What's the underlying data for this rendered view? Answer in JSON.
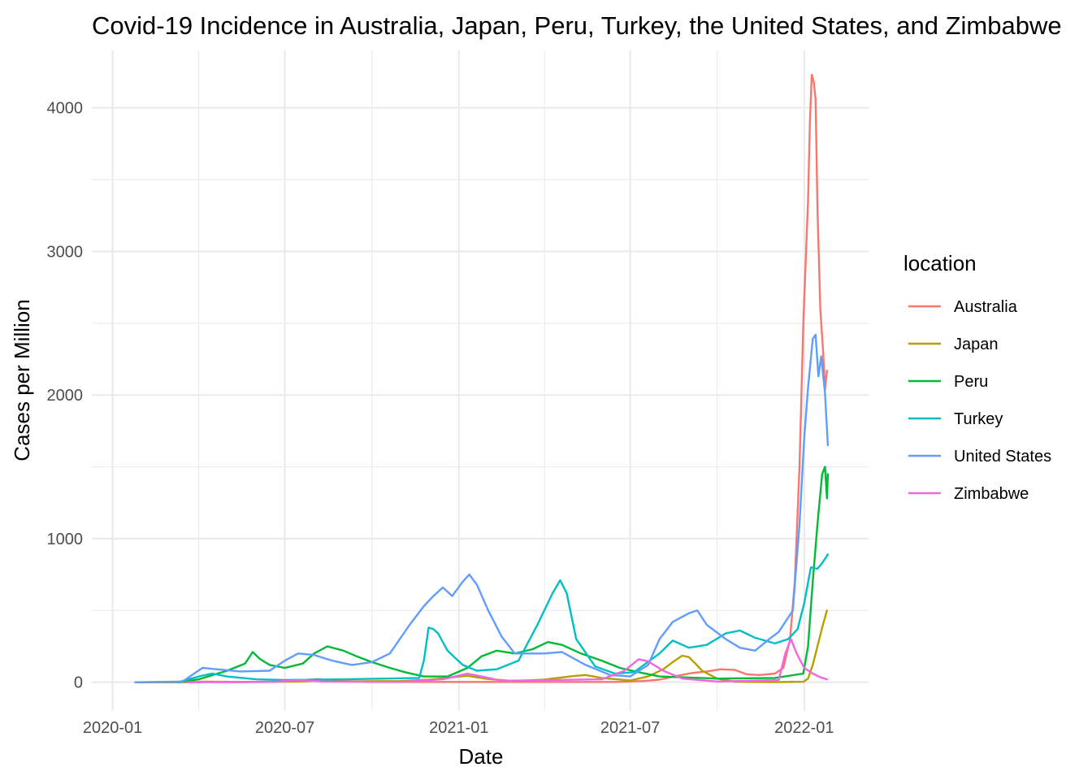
{
  "chart_data": {
    "type": "line",
    "title": "Covid-19 Incidence in Australia, Japan, Peru, Turkey, the United States, and Zimbabwe",
    "xlabel": "Date",
    "ylabel": "Cases per Million",
    "x_ticks": [
      "2020-01",
      "2020-07",
      "2021-01",
      "2021-07",
      "2022-01"
    ],
    "y_ticks": [
      0,
      1000,
      2000,
      3000,
      4000
    ],
    "xlim": [
      "2019-12-10",
      "2022-03-10"
    ],
    "ylim": [
      -200,
      4400
    ],
    "grid": true,
    "legend": {
      "title": "location",
      "position": "right"
    },
    "series": [
      {
        "name": "Australia",
        "color": "#F8766D",
        "points": [
          [
            "2020-01-25",
            0
          ],
          [
            "2020-03-20",
            1
          ],
          [
            "2020-04-05",
            4
          ],
          [
            "2020-05-01",
            1
          ],
          [
            "2020-07-01",
            5
          ],
          [
            "2020-07-20",
            15
          ],
          [
            "2020-08-05",
            22
          ],
          [
            "2020-08-25",
            10
          ],
          [
            "2020-10-01",
            2
          ],
          [
            "2021-06-15",
            2
          ],
          [
            "2021-07-15",
            8
          ],
          [
            "2021-08-01",
            18
          ],
          [
            "2021-08-20",
            45
          ],
          [
            "2021-09-05",
            65
          ],
          [
            "2021-09-20",
            75
          ],
          [
            "2021-10-05",
            90
          ],
          [
            "2021-10-20",
            85
          ],
          [
            "2021-11-01",
            55
          ],
          [
            "2021-11-15",
            50
          ],
          [
            "2021-12-01",
            60
          ],
          [
            "2021-12-10",
            100
          ],
          [
            "2021-12-17",
            300
          ],
          [
            "2021-12-22",
            700
          ],
          [
            "2021-12-27",
            1500
          ],
          [
            "2021-12-31",
            2500
          ],
          [
            "2022-01-03",
            3000
          ],
          [
            "2022-01-05",
            3350
          ],
          [
            "2022-01-07",
            3900
          ],
          [
            "2022-01-09",
            4230
          ],
          [
            "2022-01-11",
            4180
          ],
          [
            "2022-01-13",
            4060
          ],
          [
            "2022-01-15",
            3300
          ],
          [
            "2022-01-18",
            2600
          ],
          [
            "2022-01-21",
            2300
          ],
          [
            "2022-01-23",
            2040
          ],
          [
            "2022-01-25",
            2170
          ]
        ]
      },
      {
        "name": "Japan",
        "color": "#B79F00",
        "points": [
          [
            "2020-01-25",
            0
          ],
          [
            "2020-03-01",
            0
          ],
          [
            "2020-04-15",
            3
          ],
          [
            "2020-05-15",
            1
          ],
          [
            "2020-07-15",
            5
          ],
          [
            "2020-08-05",
            10
          ],
          [
            "2020-09-01",
            6
          ],
          [
            "2020-11-01",
            8
          ],
          [
            "2020-12-01",
            18
          ],
          [
            "2021-01-10",
            45
          ],
          [
            "2021-02-01",
            22
          ],
          [
            "2021-03-01",
            8
          ],
          [
            "2021-04-01",
            18
          ],
          [
            "2021-05-01",
            42
          ],
          [
            "2021-05-15",
            50
          ],
          [
            "2021-06-01",
            30
          ],
          [
            "2021-07-01",
            12
          ],
          [
            "2021-07-20",
            40
          ],
          [
            "2021-08-05",
            90
          ],
          [
            "2021-08-15",
            140
          ],
          [
            "2021-08-25",
            185
          ],
          [
            "2021-09-01",
            175
          ],
          [
            "2021-09-08",
            130
          ],
          [
            "2021-09-15",
            80
          ],
          [
            "2021-10-01",
            25
          ],
          [
            "2021-10-20",
            3
          ],
          [
            "2021-12-01",
            1
          ],
          [
            "2021-12-31",
            3
          ],
          [
            "2022-01-05",
            25
          ],
          [
            "2022-01-10",
            120
          ],
          [
            "2022-01-15",
            250
          ],
          [
            "2022-01-20",
            380
          ],
          [
            "2022-01-25",
            500
          ]
        ]
      },
      {
        "name": "Peru",
        "color": "#00BA38",
        "points": [
          [
            "2020-03-10",
            0
          ],
          [
            "2020-04-01",
            20
          ],
          [
            "2020-05-01",
            80
          ],
          [
            "2020-05-20",
            130
          ],
          [
            "2020-05-28",
            210
          ],
          [
            "2020-06-05",
            160
          ],
          [
            "2020-06-15",
            120
          ],
          [
            "2020-07-01",
            100
          ],
          [
            "2020-07-20",
            130
          ],
          [
            "2020-08-01",
            200
          ],
          [
            "2020-08-15",
            250
          ],
          [
            "2020-09-01",
            220
          ],
          [
            "2020-09-15",
            180
          ],
          [
            "2020-10-01",
            140
          ],
          [
            "2020-10-20",
            100
          ],
          [
            "2020-11-05",
            70
          ],
          [
            "2020-11-25",
            40
          ],
          [
            "2020-12-20",
            40
          ],
          [
            "2021-01-10",
            100
          ],
          [
            "2021-01-25",
            180
          ],
          [
            "2021-02-10",
            220
          ],
          [
            "2021-03-01",
            200
          ],
          [
            "2021-03-20",
            230
          ],
          [
            "2021-04-05",
            280
          ],
          [
            "2021-04-20",
            260
          ],
          [
            "2021-05-10",
            200
          ],
          [
            "2021-06-01",
            150
          ],
          [
            "2021-06-20",
            100
          ],
          [
            "2021-07-10",
            70
          ],
          [
            "2021-08-01",
            40
          ],
          [
            "2021-10-01",
            25
          ],
          [
            "2021-12-01",
            30
          ],
          [
            "2021-12-31",
            60
          ],
          [
            "2022-01-05",
            250
          ],
          [
            "2022-01-10",
            700
          ],
          [
            "2022-01-15",
            1100
          ],
          [
            "2022-01-20",
            1450
          ],
          [
            "2022-01-23",
            1500
          ],
          [
            "2022-01-25",
            1280
          ],
          [
            "2022-01-26",
            1450
          ]
        ]
      },
      {
        "name": "Turkey",
        "color": "#00BFC4",
        "points": [
          [
            "2020-03-10",
            0
          ],
          [
            "2020-04-01",
            40
          ],
          [
            "2020-04-15",
            60
          ],
          [
            "2020-05-01",
            40
          ],
          [
            "2020-06-01",
            20
          ],
          [
            "2020-07-01",
            15
          ],
          [
            "2020-09-01",
            20
          ],
          [
            "2020-11-20",
            30
          ],
          [
            "2020-11-25",
            150
          ],
          [
            "2020-11-30",
            380
          ],
          [
            "2020-12-05",
            370
          ],
          [
            "2020-12-10",
            340
          ],
          [
            "2020-12-20",
            220
          ],
          [
            "2021-01-05",
            120
          ],
          [
            "2021-01-20",
            80
          ],
          [
            "2021-02-10",
            90
          ],
          [
            "2021-03-05",
            150
          ],
          [
            "2021-03-25",
            400
          ],
          [
            "2021-04-10",
            620
          ],
          [
            "2021-04-18",
            710
          ],
          [
            "2021-04-25",
            620
          ],
          [
            "2021-05-05",
            300
          ],
          [
            "2021-05-25",
            110
          ],
          [
            "2021-06-15",
            60
          ],
          [
            "2021-07-05",
            70
          ],
          [
            "2021-08-01",
            200
          ],
          [
            "2021-08-15",
            290
          ],
          [
            "2021-09-01",
            240
          ],
          [
            "2021-09-20",
            260
          ],
          [
            "2021-10-10",
            340
          ],
          [
            "2021-10-25",
            360
          ],
          [
            "2021-11-10",
            310
          ],
          [
            "2021-12-01",
            270
          ],
          [
            "2021-12-15",
            300
          ],
          [
            "2021-12-25",
            370
          ],
          [
            "2022-01-01",
            550
          ],
          [
            "2022-01-08",
            800
          ],
          [
            "2022-01-15",
            790
          ],
          [
            "2022-01-20",
            830
          ],
          [
            "2022-01-26",
            890
          ]
        ]
      },
      {
        "name": "United States",
        "color": "#619CFF",
        "points": [
          [
            "2020-01-25",
            0
          ],
          [
            "2020-03-15",
            5
          ],
          [
            "2020-03-25",
            50
          ],
          [
            "2020-04-05",
            100
          ],
          [
            "2020-04-20",
            90
          ],
          [
            "2020-05-15",
            75
          ],
          [
            "2020-06-15",
            80
          ],
          [
            "2020-07-01",
            150
          ],
          [
            "2020-07-15",
            200
          ],
          [
            "2020-08-01",
            190
          ],
          [
            "2020-08-20",
            150
          ],
          [
            "2020-09-10",
            120
          ],
          [
            "2020-10-01",
            140
          ],
          [
            "2020-10-20",
            200
          ],
          [
            "2020-11-10",
            400
          ],
          [
            "2020-11-25",
            530
          ],
          [
            "2020-12-05",
            600
          ],
          [
            "2020-12-15",
            660
          ],
          [
            "2020-12-25",
            600
          ],
          [
            "2021-01-05",
            700
          ],
          [
            "2021-01-12",
            750
          ],
          [
            "2021-01-20",
            680
          ],
          [
            "2021-02-01",
            500
          ],
          [
            "2021-02-15",
            320
          ],
          [
            "2021-03-01",
            200
          ],
          [
            "2021-04-01",
            200
          ],
          [
            "2021-04-20",
            210
          ],
          [
            "2021-05-15",
            120
          ],
          [
            "2021-06-10",
            50
          ],
          [
            "2021-07-01",
            40
          ],
          [
            "2021-07-20",
            120
          ],
          [
            "2021-08-01",
            300
          ],
          [
            "2021-08-15",
            420
          ],
          [
            "2021-09-01",
            480
          ],
          [
            "2021-09-10",
            500
          ],
          [
            "2021-09-20",
            400
          ],
          [
            "2021-10-10",
            300
          ],
          [
            "2021-10-25",
            240
          ],
          [
            "2021-11-10",
            220
          ],
          [
            "2021-11-25",
            300
          ],
          [
            "2021-12-05",
            350
          ],
          [
            "2021-12-20",
            500
          ],
          [
            "2021-12-27",
            1100
          ],
          [
            "2022-01-01",
            1700
          ],
          [
            "2022-01-05",
            2050
          ],
          [
            "2022-01-10",
            2390
          ],
          [
            "2022-01-13",
            2420
          ],
          [
            "2022-01-16",
            2130
          ],
          [
            "2022-01-19",
            2270
          ],
          [
            "2022-01-23",
            2010
          ],
          [
            "2022-01-26",
            1650
          ]
        ]
      },
      {
        "name": "Zimbabwe",
        "color": "#F564E3",
        "points": [
          [
            "2020-03-20",
            0
          ],
          [
            "2020-06-15",
            2
          ],
          [
            "2020-07-20",
            15
          ],
          [
            "2020-08-10",
            5
          ],
          [
            "2020-11-01",
            2
          ],
          [
            "2020-12-15",
            20
          ],
          [
            "2021-01-10",
            60
          ],
          [
            "2021-01-25",
            40
          ],
          [
            "2021-02-15",
            10
          ],
          [
            "2021-06-01",
            20
          ],
          [
            "2021-06-25",
            80
          ],
          [
            "2021-07-10",
            160
          ],
          [
            "2021-07-20",
            145
          ],
          [
            "2021-08-05",
            80
          ],
          [
            "2021-08-25",
            25
          ],
          [
            "2021-10-01",
            5
          ],
          [
            "2021-12-05",
            15
          ],
          [
            "2021-12-12",
            200
          ],
          [
            "2021-12-18",
            300
          ],
          [
            "2021-12-24",
            200
          ],
          [
            "2022-01-01",
            100
          ],
          [
            "2022-01-10",
            60
          ],
          [
            "2022-01-18",
            35
          ],
          [
            "2022-01-25",
            20
          ]
        ]
      }
    ]
  }
}
